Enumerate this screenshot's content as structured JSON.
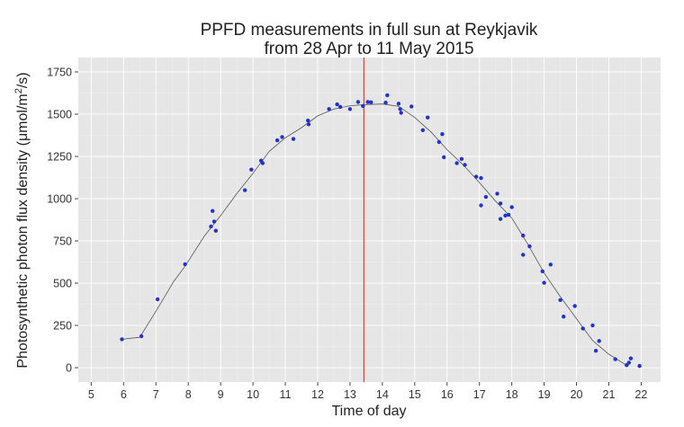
{
  "chart_data": {
    "type": "scatter",
    "title_line1": "PPFD measurements in full sun at Reykjavik",
    "title_line2": "from 28 Apr to 11 May 2015",
    "xlabel": "Time of day",
    "ylabel_prefix": "Photosynthetic photon flux density (",
    "ylabel_unit": "μmol/m",
    "ylabel_sup": "2",
    "ylabel_suffix": "/s)",
    "xlim": [
      4.6,
      22.6
    ],
    "ylim": [
      -85,
      1835
    ],
    "x_ticks": [
      5,
      6,
      7,
      8,
      9,
      10,
      11,
      12,
      13,
      14,
      15,
      16,
      17,
      18,
      19,
      20,
      21,
      22
    ],
    "x_tick_labels": [
      "5",
      "6",
      "7",
      "8",
      "9",
      "10",
      "11",
      "12",
      "13",
      "14",
      "15",
      "16",
      "17",
      "18",
      "19",
      "20",
      "21",
      "22"
    ],
    "y_ticks": [
      0,
      250,
      500,
      750,
      1000,
      1250,
      1500,
      1750
    ],
    "y_tick_labels": [
      "0",
      "250",
      "500",
      "750",
      "1000",
      "1250",
      "1500",
      "1750"
    ],
    "grid": true,
    "vline": {
      "x": 13.43,
      "color": "#e03a2e"
    },
    "point_color": "#2233cc",
    "line_color": "#555555",
    "points": [
      [
        5.95,
        168
      ],
      [
        6.55,
        186
      ],
      [
        7.05,
        405
      ],
      [
        7.9,
        612
      ],
      [
        8.7,
        835
      ],
      [
        8.75,
        927
      ],
      [
        8.8,
        865
      ],
      [
        8.85,
        810
      ],
      [
        9.75,
        1050
      ],
      [
        9.95,
        1172
      ],
      [
        10.25,
        1225
      ],
      [
        10.3,
        1210
      ],
      [
        10.75,
        1345
      ],
      [
        10.9,
        1365
      ],
      [
        11.25,
        1353
      ],
      [
        11.7,
        1462
      ],
      [
        11.72,
        1440
      ],
      [
        12.35,
        1530
      ],
      [
        12.6,
        1558
      ],
      [
        12.7,
        1543
      ],
      [
        13.0,
        1530
      ],
      [
        13.25,
        1572
      ],
      [
        13.4,
        1548
      ],
      [
        13.55,
        1572
      ],
      [
        13.65,
        1570
      ],
      [
        14.15,
        1612
      ],
      [
        14.1,
        1568
      ],
      [
        14.5,
        1562
      ],
      [
        14.55,
        1530
      ],
      [
        14.58,
        1508
      ],
      [
        14.9,
        1545
      ],
      [
        15.25,
        1405
      ],
      [
        15.4,
        1480
      ],
      [
        15.75,
        1335
      ],
      [
        15.85,
        1382
      ],
      [
        15.9,
        1245
      ],
      [
        16.3,
        1210
      ],
      [
        16.45,
        1235
      ],
      [
        16.55,
        1200
      ],
      [
        16.9,
        1130
      ],
      [
        17.05,
        1122
      ],
      [
        17.05,
        960
      ],
      [
        17.2,
        1010
      ],
      [
        17.55,
        1030
      ],
      [
        17.65,
        972
      ],
      [
        17.65,
        880
      ],
      [
        17.8,
        900
      ],
      [
        17.9,
        905
      ],
      [
        18.0,
        950
      ],
      [
        18.35,
        782
      ],
      [
        18.35,
        668
      ],
      [
        18.55,
        718
      ],
      [
        18.95,
        570
      ],
      [
        19.0,
        502
      ],
      [
        19.2,
        610
      ],
      [
        19.5,
        400
      ],
      [
        19.6,
        302
      ],
      [
        19.95,
        365
      ],
      [
        20.2,
        232
      ],
      [
        20.5,
        250
      ],
      [
        20.6,
        100
      ],
      [
        20.7,
        158
      ],
      [
        21.2,
        50
      ],
      [
        21.55,
        15
      ],
      [
        21.62,
        30
      ],
      [
        21.68,
        55
      ],
      [
        21.95,
        10
      ]
    ],
    "smooth": [
      [
        5.95,
        168
      ],
      [
        6.5,
        180
      ],
      [
        7.05,
        350
      ],
      [
        7.55,
        510
      ],
      [
        7.9,
        600
      ],
      [
        8.5,
        780
      ],
      [
        9.0,
        900
      ],
      [
        9.5,
        1030
      ],
      [
        10.0,
        1150
      ],
      [
        10.5,
        1280
      ],
      [
        11.0,
        1360
      ],
      [
        11.5,
        1420
      ],
      [
        12.0,
        1490
      ],
      [
        12.5,
        1530
      ],
      [
        13.0,
        1550
      ],
      [
        13.5,
        1557
      ],
      [
        14.0,
        1560
      ],
      [
        14.5,
        1547
      ],
      [
        15.0,
        1480
      ],
      [
        15.5,
        1395
      ],
      [
        16.0,
        1290
      ],
      [
        16.5,
        1200
      ],
      [
        17.0,
        1095
      ],
      [
        17.5,
        985
      ],
      [
        18.0,
        885
      ],
      [
        18.5,
        730
      ],
      [
        19.0,
        560
      ],
      [
        19.5,
        420
      ],
      [
        20.0,
        290
      ],
      [
        20.5,
        160
      ],
      [
        21.0,
        80
      ],
      [
        21.5,
        20
      ],
      [
        21.65,
        30
      ]
    ]
  }
}
